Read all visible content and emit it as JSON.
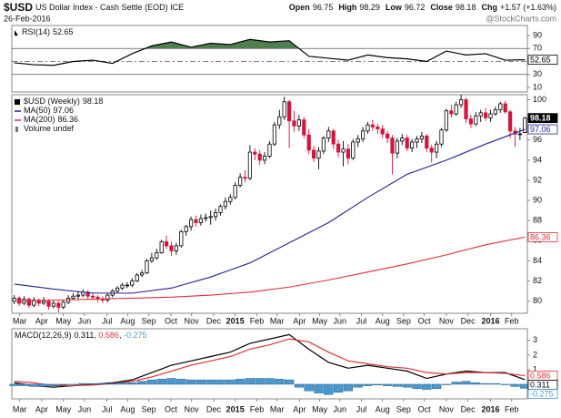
{
  "header": {
    "symbol": "$USD",
    "name": "US Dollar Index - Cash Settle (EOD) ICE",
    "date": "26-Feb-2016",
    "quote": [
      {
        "label": "Open",
        "value": "96.75"
      },
      {
        "label": "High",
        "value": "98.29"
      },
      {
        "label": "Low",
        "value": "96.72"
      },
      {
        "label": "Close",
        "value": "98.18"
      },
      {
        "label": "Chg",
        "value": "+1.57 (+1.63%)"
      }
    ],
    "credit": "@StockCharts.com"
  },
  "chart_data": [
    {
      "type": "line",
      "xlim": [
        -0.5,
        104.5
      ],
      "ylim": [
        3,
        105.4
      ],
      "yticks": [
        10,
        30,
        70,
        90
      ],
      "levels": [
        30,
        70
      ],
      "midline": 50,
      "series": [
        {
          "name": "RSI(14)",
          "current": "52.65",
          "color": "#000000",
          "fill_above": 70,
          "fill_color": "#4f7f4f",
          "x": [
            0,
            4,
            8,
            12,
            16,
            20,
            24,
            28,
            32,
            36,
            40,
            44,
            48,
            52,
            56,
            60,
            64,
            68,
            72,
            76,
            80,
            84,
            88,
            92,
            96,
            100,
            104
          ],
          "values": [
            48,
            45,
            44,
            50,
            52,
            47,
            62,
            74,
            80,
            72,
            78,
            76,
            84,
            80,
            82,
            58,
            55,
            52,
            60,
            56,
            54,
            50,
            66,
            60,
            62,
            52,
            52.65
          ]
        }
      ]
    },
    {
      "type": "candlestick",
      "title": "$USD (Weekly)",
      "current": "98.18",
      "volume_label": "Volume undef",
      "up_color": "#000000",
      "down_color": "#d4143c",
      "xlim": [
        -0.5,
        104.5
      ],
      "ylim": [
        78.8,
        100.5
      ],
      "yticks": [
        80,
        82,
        84,
        86,
        88,
        90,
        92,
        94,
        96,
        98,
        100
      ],
      "xticks": [
        {
          "value": 1.1,
          "label": "Mar"
        },
        {
          "value": 5.6,
          "label": "Apr"
        },
        {
          "value": 10,
          "label": "May"
        },
        {
          "value": 14.3,
          "label": "Jun"
        },
        {
          "value": 18.9,
          "label": "Jul"
        },
        {
          "value": 23.1,
          "label": "Aug"
        },
        {
          "value": 27.4,
          "label": "Sep"
        },
        {
          "value": 31.9,
          "label": "Oct"
        },
        {
          "value": 36.1,
          "label": "Nov"
        },
        {
          "value": 40.6,
          "label": "Dec"
        },
        {
          "value": 45,
          "label": "2015"
        },
        {
          "value": 49.4,
          "label": "Feb"
        },
        {
          "value": 53.5,
          "label": "Mar"
        },
        {
          "value": 58.1,
          "label": "Apr"
        },
        {
          "value": 62.2,
          "label": "May"
        },
        {
          "value": 66.3,
          "label": "Jun"
        },
        {
          "value": 70.7,
          "label": "Jul"
        },
        {
          "value": 75,
          "label": "Aug"
        },
        {
          "value": 79.3,
          "label": "Sep"
        },
        {
          "value": 83.5,
          "label": "Oct"
        },
        {
          "value": 88,
          "label": "Nov"
        },
        {
          "value": 92.4,
          "label": "Dec"
        },
        {
          "value": 97,
          "label": "2016"
        },
        {
          "value": 101.3,
          "label": "Feb"
        }
      ],
      "ohlc": {
        "open": [
          80.0,
          80.3,
          79.8,
          80.2,
          79.6,
          80.1,
          79.8,
          80.0,
          79.5,
          79.8,
          79.4,
          79.9,
          80.3,
          80.5,
          80.6,
          80.9,
          80.5,
          80.4,
          80.2,
          80.1,
          80.6,
          81.0,
          81.3,
          81.6,
          81.6,
          82.0,
          82.6,
          82.8,
          84.0,
          84.3,
          84.8,
          85.9,
          85.5,
          85.0,
          85.5,
          86.9,
          87.4,
          88.1,
          87.8,
          88.2,
          88.3,
          88.4,
          88.8,
          89.4,
          89.9,
          90.3,
          91.5,
          92.3,
          92.2,
          94.8,
          94.6,
          94.0,
          94.4,
          95.6,
          97.5,
          98.3,
          99.8,
          97.9,
          97.4,
          98.0,
          96.5,
          95.0,
          94.2,
          94.9,
          96.2,
          96.9,
          95.6,
          94.8,
          95.1,
          94.2,
          95.8,
          96.1,
          96.9,
          97.5,
          97.3,
          97.1,
          96.6,
          96.2,
          94.7,
          95.9,
          96.2,
          95.2,
          95.8,
          96.1,
          96.4,
          95.2,
          94.8,
          95.6,
          97.0,
          98.9,
          98.6,
          99.5,
          100.0,
          98.1,
          97.6,
          98.4,
          98.7,
          98.2,
          98.6,
          99.0,
          99.6,
          98.8,
          96.9,
          96.6,
          96.75
        ],
        "high": [
          80.6,
          80.5,
          80.5,
          80.4,
          80.4,
          80.3,
          80.4,
          80.2,
          80.1,
          80.0,
          80.1,
          80.6,
          80.8,
          81.0,
          81.2,
          81.1,
          80.8,
          80.6,
          80.5,
          80.8,
          81.2,
          81.5,
          81.8,
          81.9,
          82.3,
          82.8,
          83.1,
          84.2,
          84.8,
          85.2,
          86.1,
          86.5,
          85.9,
          85.8,
          87.1,
          87.6,
          88.4,
          88.5,
          88.6,
          88.7,
          89.0,
          89.2,
          89.6,
          90.3,
          90.6,
          91.8,
          92.7,
          93.0,
          95.5,
          95.2,
          95.0,
          94.8,
          95.9,
          97.8,
          99.0,
          100.3,
          100.0,
          98.9,
          98.5,
          98.3,
          97.1,
          95.4,
          95.3,
          96.4,
          97.3,
          97.1,
          96.0,
          95.9,
          95.6,
          96.1,
          96.5,
          97.3,
          97.8,
          98.0,
          97.6,
          97.5,
          96.9,
          96.5,
          96.2,
          96.6,
          96.5,
          96.1,
          96.4,
          96.8,
          96.6,
          95.5,
          95.9,
          97.2,
          99.1,
          99.5,
          99.8,
          100.5,
          100.2,
          98.5,
          98.8,
          99.0,
          99.2,
          99.0,
          99.3,
          99.8,
          99.9,
          99.0,
          97.3,
          97.2,
          98.29
        ],
        "low": [
          79.7,
          79.5,
          79.6,
          79.3,
          79.4,
          79.5,
          79.6,
          79.2,
          79.3,
          78.9,
          79.2,
          79.7,
          80.1,
          80.2,
          80.4,
          80.2,
          80.1,
          79.9,
          79.8,
          79.9,
          80.4,
          80.8,
          81.1,
          81.3,
          81.4,
          81.9,
          82.4,
          82.7,
          83.8,
          84.1,
          84.7,
          85.2,
          84.5,
          84.6,
          85.3,
          86.5,
          87.0,
          87.4,
          87.5,
          87.9,
          87.6,
          88.0,
          88.5,
          89.1,
          89.6,
          90.1,
          91.3,
          91.8,
          92.0,
          94.0,
          93.5,
          93.6,
          94.2,
          95.4,
          97.1,
          98.0,
          95.2,
          96.8,
          96.9,
          96.2,
          94.6,
          93.8,
          93.1,
          94.6,
          95.8,
          95.1,
          94.3,
          93.4,
          93.6,
          94.0,
          95.3,
          95.8,
          96.6,
          96.9,
          96.6,
          96.2,
          95.7,
          92.6,
          94.2,
          95.5,
          94.9,
          94.8,
          95.2,
          95.7,
          94.8,
          93.8,
          94.2,
          95.3,
          96.8,
          98.2,
          98.4,
          99.2,
          97.7,
          97.2,
          97.4,
          97.8,
          97.9,
          97.8,
          98.4,
          98.7,
          98.6,
          96.2,
          95.3,
          96.0,
          96.72
        ],
        "close": [
          80.3,
          79.8,
          80.2,
          79.6,
          80.1,
          79.8,
          80.0,
          79.5,
          79.8,
          79.4,
          79.9,
          80.3,
          80.5,
          80.6,
          80.9,
          80.5,
          80.4,
          80.2,
          80.1,
          80.6,
          81.0,
          81.3,
          81.6,
          81.6,
          82.0,
          82.6,
          82.8,
          84.0,
          84.3,
          84.8,
          85.9,
          85.5,
          85.0,
          85.5,
          86.9,
          87.4,
          88.1,
          87.8,
          88.2,
          88.3,
          88.4,
          88.8,
          89.4,
          89.9,
          90.3,
          91.5,
          92.3,
          92.2,
          94.8,
          94.6,
          94.0,
          94.4,
          95.6,
          97.5,
          98.3,
          99.8,
          97.9,
          97.4,
          98.0,
          96.5,
          95.0,
          94.2,
          94.9,
          96.2,
          96.9,
          95.6,
          94.8,
          95.1,
          94.2,
          95.8,
          96.1,
          96.9,
          97.5,
          97.3,
          97.1,
          96.6,
          96.2,
          94.7,
          95.9,
          96.2,
          95.2,
          95.8,
          96.1,
          96.4,
          95.2,
          94.8,
          95.6,
          97.0,
          98.9,
          98.6,
          99.5,
          100.0,
          98.1,
          97.6,
          98.4,
          98.7,
          98.2,
          98.6,
          99.0,
          99.6,
          98.8,
          96.9,
          96.6,
          96.61,
          98.18
        ]
      },
      "overlays": [
        {
          "name": "MA(50)",
          "current": "97.06",
          "color": "#23238e",
          "x": [
            0,
            8,
            16,
            24,
            32,
            40,
            48,
            56,
            64,
            72,
            80,
            88,
            96,
            104
          ],
          "values": [
            81.7,
            81.2,
            80.8,
            80.8,
            81.3,
            82.4,
            83.8,
            85.8,
            87.8,
            90.3,
            92.6,
            94.0,
            95.6,
            97.06
          ]
        },
        {
          "name": "MA(200)",
          "current": "86.36",
          "color": "#e0303a",
          "x": [
            0,
            8,
            16,
            24,
            32,
            40,
            48,
            56,
            64,
            72,
            80,
            88,
            96,
            104
          ],
          "values": [
            80.0,
            80.1,
            80.2,
            80.3,
            80.4,
            80.6,
            80.9,
            81.4,
            82.1,
            82.9,
            83.7,
            84.6,
            85.6,
            86.36
          ]
        }
      ]
    },
    {
      "type": "line",
      "title": "MACD(12,26,9)",
      "separator": ", ",
      "xlim": [
        -0.5,
        104.5
      ],
      "ylim": [
        -1,
        3.8
      ],
      "yticks": [
        1,
        2,
        3
      ],
      "xticks": [
        {
          "value": 1.1,
          "label": "Mar"
        },
        {
          "value": 5.6,
          "label": "Apr"
        },
        {
          "value": 10,
          "label": "May"
        },
        {
          "value": 14.3,
          "label": "Jun"
        },
        {
          "value": 18.9,
          "label": "Jul"
        },
        {
          "value": 23.1,
          "label": "Aug"
        },
        {
          "value": 27.4,
          "label": "Sep"
        },
        {
          "value": 31.9,
          "label": "Oct"
        },
        {
          "value": 36.1,
          "label": "Nov"
        },
        {
          "value": 40.6,
          "label": "Dec"
        },
        {
          "value": 45,
          "label": "2015"
        },
        {
          "value": 49.4,
          "label": "Feb"
        },
        {
          "value": 53.5,
          "label": "Mar"
        },
        {
          "value": 58.1,
          "label": "Apr"
        },
        {
          "value": 62.2,
          "label": "May"
        },
        {
          "value": 66.3,
          "label": "Jun"
        },
        {
          "value": 70.7,
          "label": "Jul"
        },
        {
          "value": 75,
          "label": "Aug"
        },
        {
          "value": 79.3,
          "label": "Sep"
        },
        {
          "value": 83.5,
          "label": "Oct"
        },
        {
          "value": 88,
          "label": "Nov"
        },
        {
          "value": 92.4,
          "label": "Dec"
        },
        {
          "value": 97,
          "label": "2016"
        },
        {
          "value": 101.3,
          "label": "Feb"
        }
      ],
      "series": [
        {
          "current": "0.311",
          "color": "#000000",
          "x": [
            0,
            4,
            8,
            12,
            16,
            20,
            24,
            28,
            32,
            36,
            40,
            44,
            48,
            52,
            56,
            60,
            64,
            68,
            72,
            76,
            80,
            84,
            88,
            92,
            96,
            100,
            104
          ],
          "values": [
            0.1,
            -0.1,
            -0.2,
            -0.1,
            0.0,
            0.1,
            0.3,
            0.8,
            1.3,
            1.6,
            1.9,
            2.2,
            2.8,
            3.1,
            3.4,
            2.4,
            1.5,
            1.1,
            1.3,
            1.1,
            0.9,
            0.4,
            0.7,
            0.9,
            0.8,
            0.8,
            0.311
          ]
        },
        {
          "current": "0.586",
          "color": "#e0303a",
          "x": [
            0,
            4,
            8,
            12,
            16,
            20,
            24,
            28,
            32,
            36,
            40,
            44,
            48,
            52,
            56,
            60,
            64,
            68,
            72,
            76,
            80,
            84,
            88,
            92,
            96,
            100,
            104
          ],
          "values": [
            0.2,
            0.1,
            -0.1,
            -0.1,
            -0.05,
            0.05,
            0.2,
            0.5,
            0.9,
            1.3,
            1.6,
            1.9,
            2.4,
            2.7,
            3.1,
            2.9,
            2.2,
            1.6,
            1.4,
            1.2,
            1.1,
            0.8,
            0.7,
            0.8,
            0.8,
            0.75,
            0.586
          ]
        },
        {
          "type": "bar",
          "current": "-0.275",
          "color": "#4a98cf",
          "x": [
            0,
            2,
            4,
            6,
            8,
            10,
            12,
            14,
            16,
            18,
            20,
            22,
            24,
            26,
            28,
            30,
            32,
            34,
            36,
            38,
            40,
            42,
            44,
            46,
            48,
            50,
            52,
            54,
            56,
            58,
            60,
            62,
            64,
            66,
            68,
            70,
            72,
            74,
            76,
            78,
            80,
            82,
            84,
            86,
            88,
            90,
            92,
            94,
            96,
            98,
            100,
            102,
            104
          ],
          "values": [
            -0.1,
            -0.1,
            -0.15,
            -0.15,
            -0.1,
            -0.05,
            0,
            0.05,
            0.05,
            0.05,
            0.05,
            0.1,
            0.1,
            0.2,
            0.3,
            0.35,
            0.4,
            0.35,
            0.3,
            0.3,
            0.3,
            0.3,
            0.3,
            0.35,
            0.4,
            0.4,
            0.4,
            0.35,
            0.3,
            -0.2,
            -0.45,
            -0.6,
            -0.7,
            -0.55,
            -0.45,
            -0.2,
            -0.1,
            -0.05,
            -0.1,
            -0.15,
            -0.2,
            -0.3,
            -0.35,
            -0.3,
            0,
            0.15,
            0.2,
            0.1,
            0.05,
            0.05,
            0,
            -0.15,
            -0.275
          ]
        }
      ]
    }
  ]
}
